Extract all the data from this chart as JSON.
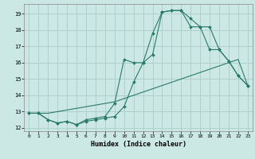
{
  "title": "",
  "xlabel": "Humidex (Indice chaleur)",
  "ylabel": "",
  "bg_color": "#cce8e4",
  "grid_color": "#aaccca",
  "line_color": "#2a7a6a",
  "xlim": [
    -0.5,
    23.5
  ],
  "ylim": [
    11.8,
    19.6
  ],
  "xticks": [
    0,
    1,
    2,
    3,
    4,
    5,
    6,
    7,
    8,
    9,
    10,
    11,
    12,
    13,
    14,
    15,
    16,
    17,
    18,
    19,
    20,
    21,
    22,
    23
  ],
  "yticks": [
    12,
    13,
    14,
    15,
    16,
    17,
    18,
    19
  ],
  "line1_x": [
    0,
    1,
    2,
    3,
    4,
    5,
    6,
    7,
    8,
    9,
    10,
    11,
    12,
    13,
    14,
    15,
    16,
    17,
    18,
    19,
    20,
    21,
    22,
    23
  ],
  "line1_y": [
    12.9,
    12.9,
    12.5,
    12.3,
    12.4,
    12.2,
    12.4,
    12.5,
    12.6,
    12.7,
    13.3,
    14.8,
    16.0,
    17.8,
    19.1,
    19.2,
    19.2,
    18.2,
    18.2,
    18.2,
    16.8,
    16.1,
    15.2,
    14.6
  ],
  "line2_x": [
    0,
    1,
    2,
    3,
    4,
    5,
    6,
    7,
    8,
    9,
    10,
    11,
    12,
    13,
    14,
    15,
    16,
    17,
    18,
    19,
    20,
    21,
    22,
    23
  ],
  "line2_y": [
    12.9,
    12.9,
    12.5,
    12.3,
    12.4,
    12.2,
    12.5,
    12.6,
    12.7,
    13.5,
    16.2,
    16.0,
    16.0,
    16.5,
    19.1,
    19.2,
    19.2,
    18.7,
    18.2,
    16.8,
    16.8,
    16.1,
    15.2,
    14.6
  ],
  "line3_x": [
    0,
    1,
    2,
    3,
    4,
    5,
    6,
    7,
    8,
    9,
    10,
    11,
    12,
    13,
    14,
    15,
    16,
    17,
    18,
    19,
    20,
    21,
    22,
    23
  ],
  "line3_y": [
    12.9,
    12.9,
    12.9,
    13.0,
    13.1,
    13.2,
    13.3,
    13.4,
    13.5,
    13.6,
    13.8,
    14.0,
    14.2,
    14.4,
    14.6,
    14.8,
    15.0,
    15.2,
    15.4,
    15.6,
    15.8,
    16.0,
    16.2,
    14.6
  ]
}
